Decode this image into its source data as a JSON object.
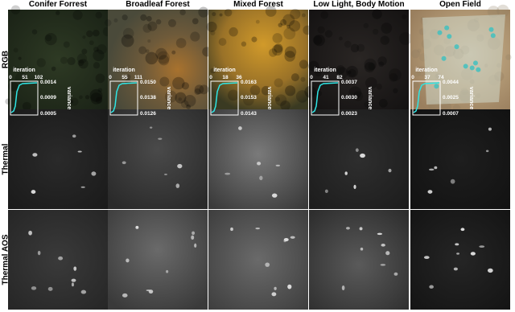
{
  "columns": [
    {
      "title": "Conifer Forrest",
      "xticks": [
        "0",
        "51",
        "102"
      ],
      "yticks": [
        "0.0014",
        "0.0009",
        "0.0005"
      ]
    },
    {
      "title": "Broadleaf Forest",
      "xticks": [
        "0",
        "55",
        "111"
      ],
      "yticks": [
        "0.0150",
        "0.0138",
        "0.0126"
      ]
    },
    {
      "title": "Mixed Forest",
      "xticks": [
        "0",
        "18",
        "36"
      ],
      "yticks": [
        "0.0163",
        "0.0153",
        "0.0143"
      ]
    },
    {
      "title": "Low Light, Body Motion",
      "xticks": [
        "0",
        "41",
        "82"
      ],
      "yticks": [
        "0.0037",
        "0.0030",
        "0.0023"
      ]
    },
    {
      "title": "Open Field",
      "xticks": [
        "0",
        "37",
        "74"
      ],
      "yticks": [
        "0.0044",
        "0.0025",
        "0.0007"
      ]
    }
  ],
  "rows": [
    "RGB",
    "Thermal",
    "Thermal AOS"
  ],
  "inset_x_label": "iteration",
  "inset_y_label": "variance"
}
